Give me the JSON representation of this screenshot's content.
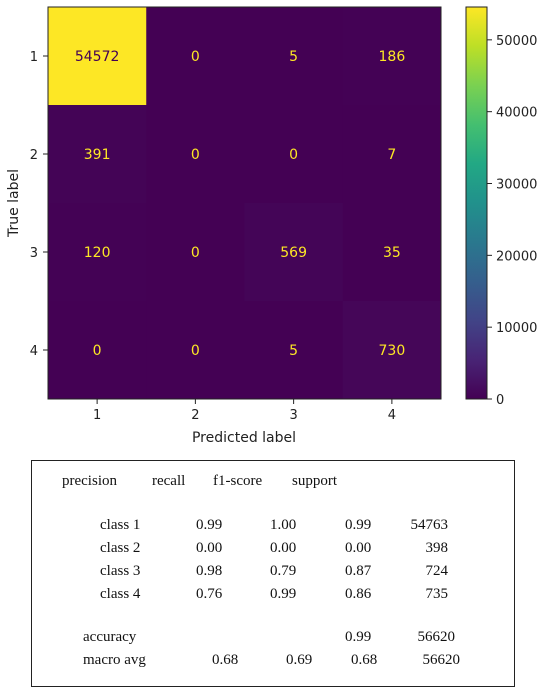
{
  "chart_data": {
    "type": "heatmap",
    "xlabel": "Predicted label",
    "ylabel": "True label",
    "x_categories": [
      "1",
      "2",
      "3",
      "4"
    ],
    "y_categories": [
      "1",
      "2",
      "3",
      "4"
    ],
    "matrix": [
      [
        54572,
        0,
        5,
        186
      ],
      [
        391,
        0,
        0,
        7
      ],
      [
        120,
        0,
        569,
        35
      ],
      [
        0,
        0,
        5,
        730
      ]
    ],
    "colorbar": {
      "min": 0,
      "max": 54572,
      "ticks": [
        0,
        10000,
        20000,
        30000,
        40000,
        50000
      ],
      "colormap": "viridis"
    }
  },
  "report": {
    "headers": [
      "precision",
      "recall",
      "f1-score",
      "support"
    ],
    "rows": [
      {
        "label": "class 1",
        "precision": "0.99",
        "recall": "1.00",
        "f1": "0.99",
        "support": "54763"
      },
      {
        "label": "class 2",
        "precision": "0.00",
        "recall": "0.00",
        "f1": "0.00",
        "support": "398"
      },
      {
        "label": "class 3",
        "precision": "0.98",
        "recall": "0.79",
        "f1": "0.87",
        "support": "724"
      },
      {
        "label": "class 4",
        "precision": "0.76",
        "recall": "0.99",
        "f1": "0.86",
        "support": "735"
      }
    ],
    "accuracy": {
      "label": "accuracy",
      "f1": "0.99",
      "support": "56620"
    },
    "macro_avg": {
      "label": "macro avg",
      "precision": "0.68",
      "recall": "0.69",
      "f1": "0.68",
      "support": "56620"
    }
  }
}
